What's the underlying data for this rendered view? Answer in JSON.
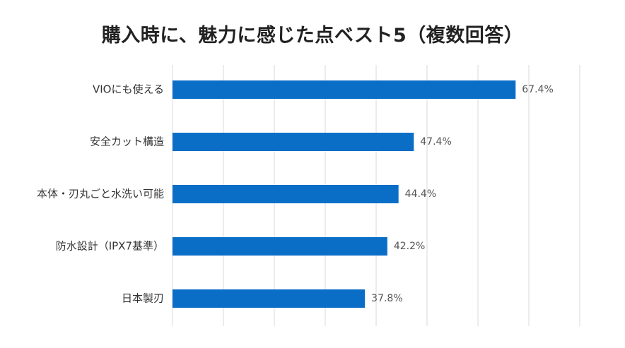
{
  "chart_data": {
    "type": "bar",
    "orientation": "horizontal",
    "title": "購入時に、魅力に感じた点ベスト5（複数回答）",
    "categories": [
      "VIOにも使える",
      "安全カット構造",
      "本体・刃丸ごと水洗い可能",
      "防水設計（IPX7基準）",
      "日本製刃"
    ],
    "values": [
      67.4,
      47.4,
      44.4,
      42.2,
      37.8
    ],
    "value_labels": [
      "67.4%",
      "47.4%",
      "44.4%",
      "42.2%",
      "37.8%"
    ],
    "xlim": [
      0,
      80
    ],
    "grid_step": 10,
    "grid": true,
    "xlabel": "",
    "ylabel": "",
    "legend": "none",
    "bar_color": "#0a6ec7"
  }
}
